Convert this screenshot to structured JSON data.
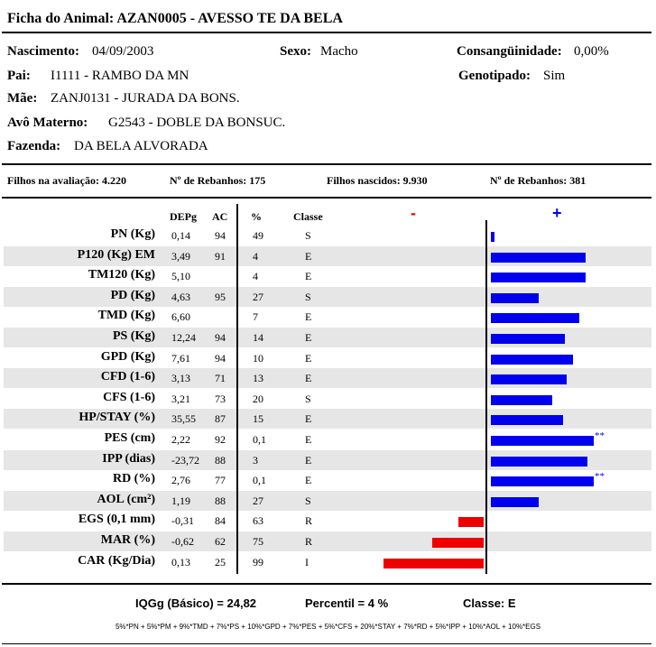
{
  "header": {
    "title_label": "Ficha do Animal:",
    "title_value": "AZAN0005 - AVESSO TE DA BELA"
  },
  "info": {
    "nascimento_label": "Nascimento:",
    "nascimento": "04/09/2003",
    "sexo_label": "Sexo:",
    "sexo": "Macho",
    "consang_label": "Consangüinidade:",
    "consang": "0,00%",
    "pai_label": "Pai:",
    "pai": "I1111 - RAMBO DA MN",
    "genotipado_label": "Genotipado:",
    "genotipado": "Sim",
    "mae_label": "Mãe:",
    "mae": "ZANJ0131 - JURADA DA BONS.",
    "avo_label": "Avô Materno:",
    "avo": "G2543 - DOBLE DA BONSUC.",
    "fazenda_label": "Fazenda:",
    "fazenda": "DA BELA ALVORADA"
  },
  "stats": {
    "filhos_aval": "Filhos na avaliação: 4.220",
    "rebanhos_1": "Nº de Rebanhos: 175",
    "filhos_nasc": "Filhos nascidos: 9.930",
    "rebanhos_2": "Nº de Rebanhos: 381"
  },
  "columns": {
    "depg": "DEPg",
    "ac": "AC",
    "pct": "%",
    "classe": "Classe",
    "minus": "-",
    "plus": "+"
  },
  "traits": [
    {
      "name": "PN (Kg)",
      "depg": "0,14",
      "ac": "94",
      "pct": "49",
      "classe": "S",
      "bar": 0.14,
      "mark": ""
    },
    {
      "name": "P120 (Kg) EM",
      "depg": "3,49",
      "ac": "91",
      "pct": "4",
      "classe": "E",
      "bar": 3.49,
      "mark": ""
    },
    {
      "name": "TM120 (Kg)",
      "depg": "5,10",
      "ac": "",
      "pct": "4",
      "classe": "E",
      "bar": 3.49,
      "mark": ""
    },
    {
      "name": "PD (Kg)",
      "depg": "4,63",
      "ac": "95",
      "pct": "27",
      "classe": "S",
      "bar": 1.75,
      "mark": ""
    },
    {
      "name": "TMD (Kg)",
      "depg": "6,60",
      "ac": "",
      "pct": "7",
      "classe": "E",
      "bar": 3.25,
      "mark": ""
    },
    {
      "name": "PS (Kg)",
      "depg": "12,24",
      "ac": "94",
      "pct": "14",
      "classe": "E",
      "bar": 2.72,
      "mark": ""
    },
    {
      "name": "GPD (Kg)",
      "depg": "7,61",
      "ac": "94",
      "pct": "10",
      "classe": "E",
      "bar": 3.02,
      "mark": ""
    },
    {
      "name": "CFD (1-6)",
      "depg": "3,13",
      "ac": "71",
      "pct": "13",
      "classe": "E",
      "bar": 2.8,
      "mark": ""
    },
    {
      "name": "CFS (1-6)",
      "depg": "3,21",
      "ac": "73",
      "pct": "20",
      "classe": "S",
      "bar": 2.27,
      "mark": ""
    },
    {
      "name": "HP/STAY (%)",
      "depg": "35,55",
      "ac": "87",
      "pct": "15",
      "classe": "E",
      "bar": 2.65,
      "mark": ""
    },
    {
      "name": "PES (cm)",
      "depg": "2,22",
      "ac": "92",
      "pct": "0,1",
      "classe": "E",
      "bar": 3.8,
      "mark": "**"
    },
    {
      "name": "IPP (dias)",
      "depg": "-23,72",
      "ac": "88",
      "pct": "3",
      "classe": "E",
      "bar": 3.57,
      "mark": ""
    },
    {
      "name": "RD (%)",
      "depg": "2,76",
      "ac": "77",
      "pct": "0,1",
      "classe": "E",
      "bar": 3.8,
      "mark": "**"
    },
    {
      "name": "AOL (cm²)",
      "depg": "1,19",
      "ac": "88",
      "pct": "27",
      "classe": "S",
      "bar": 1.75,
      "mark": ""
    },
    {
      "name": "EGS (0,1 mm)",
      "depg": "-0,31",
      "ac": "84",
      "pct": "63",
      "classe": "R",
      "bar": -0.95,
      "mark": ""
    },
    {
      "name": "MAR (%)",
      "depg": "-0,62",
      "ac": "62",
      "pct": "75",
      "classe": "R",
      "bar": -1.9,
      "mark": ""
    },
    {
      "name": "CAR (Kg/Dia)",
      "depg": "0,13",
      "ac": "25",
      "pct": "99",
      "classe": "I",
      "bar": -3.7,
      "mark": ""
    }
  ],
  "footer": {
    "iqgg": "IQGg (Básico) = 24,82",
    "percentil": "Percentil = 4 %",
    "classe": "Classe: E",
    "formula": "5%*PN + 5%*PM + 9%*TMD + 7%*PS + 10%*GPD + 7%*PES + 5%*CFS + 20%*STAY + 7%*RD + 5%*IPP + 10%*AOL + 10%*EGS"
  },
  "colors": {
    "positive": "#0000ee",
    "negative": "#ee0000",
    "band": "#e6e6e6"
  }
}
